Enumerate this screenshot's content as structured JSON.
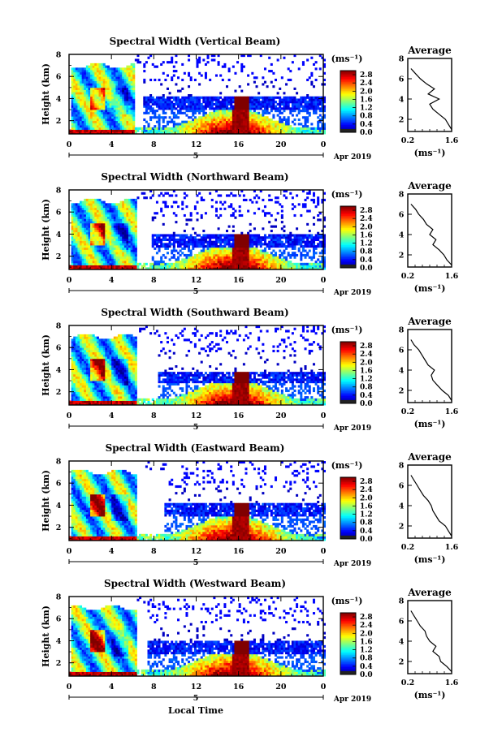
{
  "figure": {
    "xlabel": "Local Time",
    "date_label": "Apr 2019",
    "day_label": "5",
    "colorbar_unit": "(ms⁻¹)",
    "avg_title": "Average",
    "avg_xlabel": "(ms⁻¹)"
  },
  "chart_data": [
    {
      "type": "heatmap",
      "title": "Spectral Width (Vertical Beam)",
      "ylabel": "Height (km)",
      "x_ticks": [
        "0",
        "4",
        "8",
        "12",
        "16",
        "20",
        "0"
      ],
      "xlim": [
        0,
        24
      ],
      "y_ticks": [
        "2",
        "4",
        "6",
        "8"
      ],
      "ylim": [
        0.8,
        8
      ],
      "colorbar": {
        "ticks": [
          "0.0",
          "0.4",
          "0.8",
          "1.2",
          "1.6",
          "2.0",
          "2.4",
          "2.8"
        ],
        "range": [
          0,
          3.0
        ]
      },
      "cloud_layer_km": [
        3.0,
        4.0
      ],
      "gap_hours": [
        6.3,
        7.1
      ],
      "average_profile": {
        "title": "Average",
        "xticks": [
          "0.2",
          "1.6"
        ],
        "xlim": [
          0.2,
          1.6
        ],
        "yticks": [
          "2",
          "4",
          "6",
          "8"
        ],
        "ylim": [
          0.8,
          8
        ],
        "height_km": [
          1.0,
          1.5,
          2.0,
          2.5,
          3.0,
          3.5,
          4.0,
          4.5,
          5.0,
          5.5,
          6.0,
          6.5,
          7.0
        ],
        "width_ms": [
          1.6,
          1.5,
          1.4,
          1.2,
          1.0,
          0.9,
          1.2,
          0.85,
          1.05,
          0.8,
          0.6,
          0.45,
          0.3
        ]
      }
    },
    {
      "type": "heatmap",
      "title": "Spectral Width (Northward Beam)",
      "ylabel": "Height (km)",
      "x_ticks": [
        "0",
        "4",
        "8",
        "12",
        "16",
        "20",
        "0"
      ],
      "xlim": [
        0,
        24
      ],
      "y_ticks": [
        "2",
        "4",
        "6",
        "8"
      ],
      "ylim": [
        0.8,
        8
      ],
      "colorbar": {
        "ticks": [
          "0.0",
          "0.4",
          "0.8",
          "1.2",
          "1.6",
          "2.0",
          "2.4",
          "2.8"
        ],
        "range": [
          0,
          3.0
        ]
      },
      "cloud_layer_km": [
        2.8,
        3.8
      ],
      "gap_hours": [
        6.5,
        7.8
      ],
      "average_profile": {
        "title": "Average",
        "xticks": [
          "0.2",
          "1.6"
        ],
        "xlim": [
          0.2,
          1.6
        ],
        "yticks": [
          "2",
          "4",
          "6",
          "8"
        ],
        "ylim": [
          0.8,
          8
        ],
        "height_km": [
          1.0,
          1.5,
          2.0,
          2.5,
          3.0,
          3.5,
          4.0,
          4.5,
          5.0,
          5.5,
          6.0,
          6.5,
          7.0
        ],
        "width_ms": [
          1.6,
          1.45,
          1.35,
          1.2,
          1.0,
          1.1,
          0.9,
          1.0,
          0.8,
          0.7,
          0.55,
          0.45,
          0.3
        ]
      }
    },
    {
      "type": "heatmap",
      "title": "Spectral Width (Southward Beam)",
      "ylabel": "Height (km)",
      "x_ticks": [
        "0",
        "4",
        "8",
        "12",
        "16",
        "20",
        "0"
      ],
      "xlim": [
        0,
        24
      ],
      "y_ticks": [
        "2",
        "4",
        "6",
        "8"
      ],
      "ylim": [
        0.8,
        8
      ],
      "colorbar": {
        "ticks": [
          "0.0",
          "0.4",
          "0.8",
          "1.2",
          "1.6",
          "2.0",
          "2.4",
          "2.8"
        ],
        "range": [
          0,
          3.0
        ]
      },
      "cloud_layer_km": [
        2.8,
        3.6
      ],
      "gap_hours": [
        6.5,
        8.5
      ],
      "average_profile": {
        "title": "Average",
        "xticks": [
          "0.2",
          "1.6"
        ],
        "xlim": [
          0.2,
          1.6
        ],
        "yticks": [
          "2",
          "4",
          "6",
          "8"
        ],
        "ylim": [
          0.8,
          8
        ],
        "height_km": [
          1.0,
          1.5,
          2.0,
          2.5,
          3.0,
          3.5,
          4.0,
          4.5,
          5.0,
          5.5,
          6.0,
          6.5,
          7.0
        ],
        "width_ms": [
          1.6,
          1.5,
          1.3,
          1.15,
          1.0,
          0.95,
          1.05,
          0.85,
          0.75,
          0.65,
          0.55,
          0.4,
          0.3
        ]
      }
    },
    {
      "type": "heatmap",
      "title": "Spectral Width (Eastward Beam)",
      "ylabel": "Height (km)",
      "x_ticks": [
        "0",
        "4",
        "8",
        "12",
        "16",
        "20",
        "0"
      ],
      "xlim": [
        0,
        24
      ],
      "y_ticks": [
        "2",
        "4",
        "6",
        "8"
      ],
      "ylim": [
        0.8,
        8
      ],
      "colorbar": {
        "ticks": [
          "0.0",
          "0.4",
          "0.8",
          "1.2",
          "1.6",
          "2.0",
          "2.4",
          "2.8"
        ],
        "range": [
          0,
          3.0
        ]
      },
      "cloud_layer_km": [
        3.0,
        4.0
      ],
      "gap_hours": [
        6.5,
        9.0
      ],
      "average_profile": {
        "title": "Average",
        "xticks": [
          "0.2",
          "1.6"
        ],
        "xlim": [
          0.2,
          1.6
        ],
        "yticks": [
          "2",
          "4",
          "6",
          "8"
        ],
        "ylim": [
          0.8,
          8
        ],
        "height_km": [
          1.0,
          1.5,
          2.0,
          2.5,
          3.0,
          3.5,
          4.0,
          4.5,
          5.0,
          5.5,
          6.0,
          6.5,
          7.0
        ],
        "width_ms": [
          1.6,
          1.5,
          1.4,
          1.2,
          1.1,
          1.0,
          0.95,
          0.85,
          0.7,
          0.6,
          0.5,
          0.4,
          0.3
        ]
      }
    },
    {
      "type": "heatmap",
      "title": "Spectral Width (Westward Beam)",
      "ylabel": "Height (km)",
      "x_ticks": [
        "0",
        "4",
        "8",
        "12",
        "16",
        "20",
        "0"
      ],
      "xlim": [
        0,
        24
      ],
      "y_ticks": [
        "2",
        "4",
        "6",
        "8"
      ],
      "ylim": [
        0.8,
        8
      ],
      "colorbar": {
        "ticks": [
          "0.0",
          "0.4",
          "0.8",
          "1.2",
          "1.6",
          "2.0",
          "2.4",
          "2.8"
        ],
        "range": [
          0,
          3.0
        ]
      },
      "cloud_layer_km": [
        2.8,
        3.8
      ],
      "gap_hours": [
        6.5,
        7.5
      ],
      "average_profile": {
        "title": "Average",
        "xticks": [
          "0.2",
          "1.6"
        ],
        "xlim": [
          0.2,
          1.6
        ],
        "yticks": [
          "2",
          "4",
          "6",
          "8"
        ],
        "ylim": [
          0.8,
          8
        ],
        "height_km": [
          1.0,
          1.5,
          2.0,
          2.5,
          3.0,
          3.5,
          4.0,
          4.5,
          5.0,
          5.5,
          6.0,
          6.5,
          7.0
        ],
        "width_ms": [
          1.6,
          1.45,
          1.25,
          1.2,
          1.0,
          1.1,
          0.9,
          0.8,
          0.75,
          0.6,
          0.5,
          0.4,
          0.3
        ]
      }
    }
  ]
}
